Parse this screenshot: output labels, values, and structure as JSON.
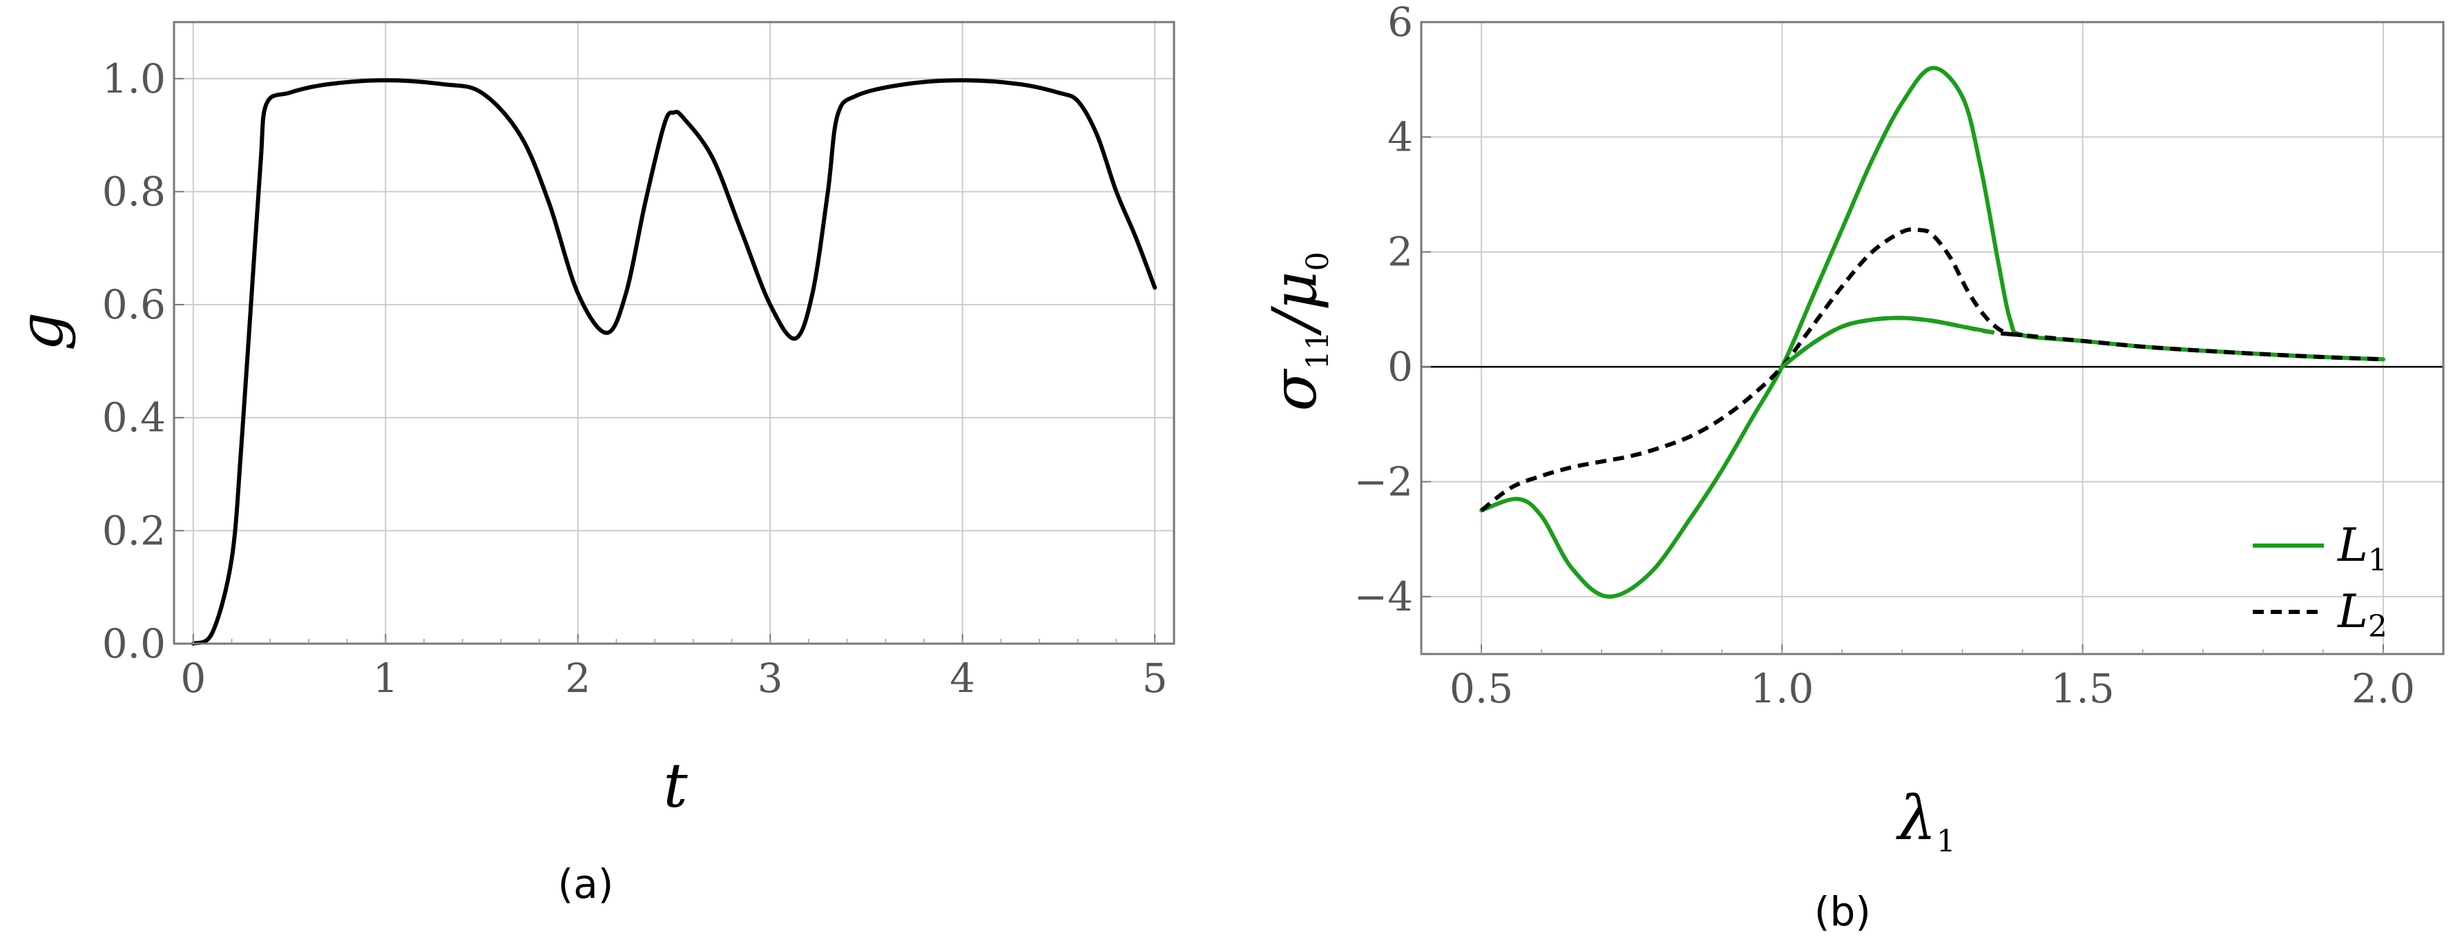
{
  "chart_data": [
    {
      "type": "line",
      "caption": "(a)",
      "xlabel": "t",
      "ylabel": "g",
      "xlim": [
        -0.1,
        5.1
      ],
      "ylim": [
        0.0,
        1.1
      ],
      "xticks": [
        0,
        1,
        2,
        3,
        4,
        5
      ],
      "xtick_labels": [
        "0",
        "1",
        "2",
        "3",
        "4",
        "5"
      ],
      "yticks": [
        0.0,
        0.2,
        0.4,
        0.6,
        0.8,
        1.0
      ],
      "ytick_labels": [
        "0.0",
        "0.2",
        "0.4",
        "0.6",
        "0.8",
        "1.0"
      ],
      "grid": true,
      "series": [
        {
          "color": "#000000",
          "dash": "solid",
          "x": [
            0,
            0.1,
            0.2,
            0.25,
            0.3,
            0.35,
            0.38,
            0.5,
            0.7,
            1.0,
            1.3,
            1.5,
            1.7,
            1.85,
            2.0,
            2.15,
            2.25,
            2.35,
            2.45,
            2.5,
            2.55,
            2.7,
            2.85,
            3.0,
            3.13,
            3.22,
            3.3,
            3.35,
            3.45,
            3.7,
            4.0,
            4.3,
            4.5,
            4.6,
            4.7,
            4.8,
            4.9,
            5.0
          ],
          "y": [
            0.0,
            0.02,
            0.15,
            0.35,
            0.6,
            0.85,
            0.955,
            0.975,
            0.99,
            0.997,
            0.99,
            0.975,
            0.9,
            0.78,
            0.62,
            0.55,
            0.62,
            0.78,
            0.92,
            0.94,
            0.93,
            0.86,
            0.73,
            0.6,
            0.54,
            0.62,
            0.8,
            0.935,
            0.97,
            0.99,
            0.997,
            0.99,
            0.975,
            0.96,
            0.9,
            0.8,
            0.72,
            0.63
          ]
        }
      ]
    },
    {
      "type": "line",
      "caption": "(b)",
      "xlabel": "λ",
      "xlabel_sub": "1",
      "ylabel": "σ",
      "ylabel_sub": "11",
      "ylabel_suffix": "/μ",
      "ylabel_suffix_sub": "0",
      "xlim": [
        0.4,
        2.1
      ],
      "ylim": [
        -5,
        6
      ],
      "xticks": [
        0.5,
        1.0,
        1.5,
        2.0
      ],
      "xtick_labels": [
        "0.5",
        "1.0",
        "1.5",
        "2.0"
      ],
      "yticks": [
        -4,
        -2,
        0,
        2,
        4,
        6
      ],
      "ytick_labels": [
        "−4",
        "−2",
        "0",
        "2",
        "4",
        "6"
      ],
      "grid": true,
      "legend_position": "bottom-right",
      "series": [
        {
          "name": "L",
          "name_sub": "1",
          "color": "#1a9e1a",
          "dash": "solid",
          "x": [
            0.5,
            0.56,
            0.6,
            0.65,
            0.71,
            0.78,
            0.85,
            0.9,
            0.95,
            1.0,
            1.05,
            1.1,
            1.15,
            1.2,
            1.25,
            1.3,
            1.33,
            1.36,
            1.38,
            1.4,
            1.5,
            1.6,
            1.7,
            1.8,
            1.9,
            2.0
          ],
          "y": [
            -2.5,
            -2.3,
            -2.6,
            -3.5,
            -4.0,
            -3.6,
            -2.6,
            -1.8,
            -0.9,
            0.0,
            1.2,
            2.4,
            3.6,
            4.6,
            5.2,
            4.7,
            3.5,
            1.8,
            0.8,
            0.55,
            0.45,
            0.35,
            0.28,
            0.22,
            0.17,
            0.13
          ]
        },
        {
          "name": "L",
          "name_sub": "2",
          "color": "#000000",
          "dash": "dashed",
          "x": [
            0.5,
            0.55,
            0.6,
            0.65,
            0.7,
            0.75,
            0.8,
            0.85,
            0.9,
            0.95,
            1.0,
            1.05,
            1.1,
            1.15,
            1.2,
            1.23,
            1.25,
            1.28,
            1.31,
            1.34,
            1.37,
            1.4,
            1.5,
            1.6,
            1.7,
            1.8,
            1.9,
            2.0
          ],
          "y": [
            -2.5,
            -2.1,
            -1.9,
            -1.75,
            -1.65,
            -1.55,
            -1.4,
            -1.2,
            -0.9,
            -0.5,
            0.0,
            0.7,
            1.4,
            2.0,
            2.35,
            2.38,
            2.3,
            1.9,
            1.3,
            0.85,
            0.6,
            0.55,
            0.45,
            0.35,
            0.28,
            0.22,
            0.17,
            0.13
          ]
        },
        {
          "color": "#000000",
          "dash": "dashed",
          "x": [
            1.0,
            1.05,
            1.1,
            1.15,
            1.2,
            1.25,
            1.3,
            1.35,
            1.4
          ],
          "y": [
            0.0,
            0.4,
            0.7,
            0.82,
            0.85,
            0.8,
            0.7,
            0.6,
            0.55
          ]
        },
        {
          "color": "#1a9e1a",
          "dash": "solid",
          "x": [
            1.0,
            1.05,
            1.1,
            1.15,
            1.2,
            1.25,
            1.3,
            1.35
          ],
          "y": [
            0.0,
            0.4,
            0.7,
            0.82,
            0.85,
            0.8,
            0.7,
            0.6
          ]
        }
      ]
    }
  ]
}
